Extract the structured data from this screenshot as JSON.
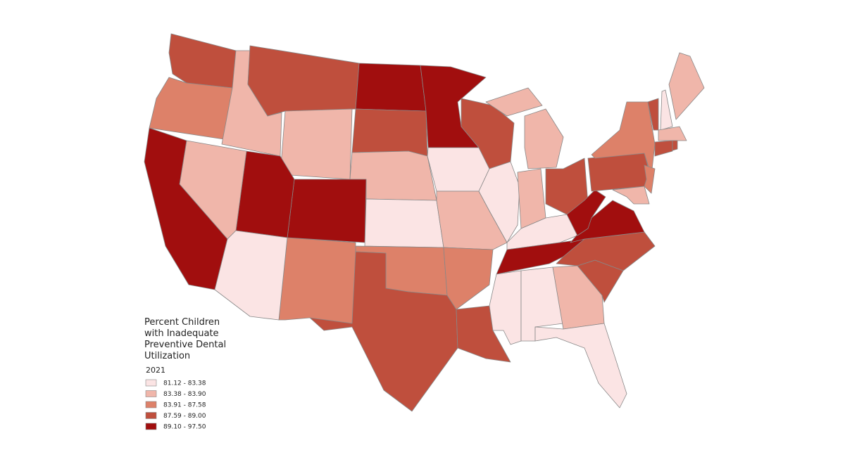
{
  "map": {
    "legend": {
      "title_lines": [
        "Percent Children",
        "with Inadequate",
        "Preventive Dental",
        "Utilization"
      ],
      "year": "2021",
      "classes": [
        {
          "label": "81.12 - 83.38",
          "color": "#fbe4e4"
        },
        {
          "label": "83.38 - 83.90",
          "color": "#f0b6aa"
        },
        {
          "label": "83.91 - 87.58",
          "color": "#dd8169"
        },
        {
          "label": "87.59 - 89.00",
          "color": "#bf4f3d"
        },
        {
          "label": "89.10 - 97.50",
          "color": "#a10e0e"
        }
      ]
    },
    "state_classes": [
      3,
      2,
      1,
      3,
      1,
      4,
      3,
      1,
      0,
      2,
      3,
      2,
      4,
      4,
      1,
      4,
      0,
      4,
      0,
      1,
      2,
      3,
      3,
      0,
      1,
      1,
      1,
      3,
      0,
      4,
      0,
      0,
      1,
      0,
      3,
      3,
      4,
      4,
      3,
      2,
      2,
      1,
      3,
      0,
      1,
      1,
      3,
      3
    ]
  }
}
